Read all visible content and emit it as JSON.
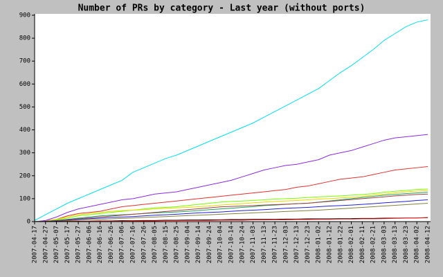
{
  "chart_data": {
    "type": "line",
    "title": "Number of PRs by category - Last year (without ports)",
    "categories": [
      "2007-04-17",
      "2007-04-27",
      "2007-05-07",
      "2007-05-17",
      "2007-05-27",
      "2007-06-06",
      "2007-06-16",
      "2007-06-26",
      "2007-07-06",
      "2007-07-16",
      "2007-07-26",
      "2007-08-05",
      "2007-08-15",
      "2007-08-25",
      "2007-09-04",
      "2007-09-14",
      "2007-09-24",
      "2007-10-04",
      "2007-10-14",
      "2007-10-24",
      "2007-11-03",
      "2007-11-13",
      "2007-11-23",
      "2007-12-03",
      "2007-12-13",
      "2007-12-23",
      "2008-01-02",
      "2008-01-12",
      "2008-01-22",
      "2008-02-01",
      "2008-02-11",
      "2008-02-21",
      "2008-03-03",
      "2008-03-13",
      "2008-03-23",
      "2008-04-02",
      "2008-04-12"
    ],
    "series": [
      {
        "color": "#00e0f0",
        "values": [
          5,
          30,
          55,
          80,
          100,
          120,
          140,
          160,
          180,
          215,
          235,
          255,
          275,
          290,
          310,
          330,
          350,
          370,
          390,
          410,
          430,
          455,
          480,
          505,
          530,
          555,
          580,
          615,
          650,
          680,
          715,
          750,
          790,
          820,
          850,
          870,
          880
        ]
      },
      {
        "color": "#8a2be2",
        "values": [
          0,
          5,
          20,
          40,
          55,
          65,
          75,
          85,
          95,
          100,
          110,
          120,
          125,
          130,
          140,
          150,
          160,
          170,
          180,
          195,
          210,
          225,
          235,
          245,
          250,
          260,
          270,
          290,
          300,
          310,
          325,
          340,
          355,
          365,
          370,
          375,
          380
        ]
      },
      {
        "color": "#e03030",
        "values": [
          0,
          3,
          10,
          25,
          35,
          40,
          45,
          55,
          65,
          70,
          75,
          80,
          85,
          90,
          95,
          100,
          105,
          110,
          115,
          120,
          125,
          130,
          135,
          140,
          150,
          155,
          165,
          175,
          185,
          190,
          195,
          205,
          215,
          225,
          230,
          235,
          240
        ]
      },
      {
        "color": "#7cfc00",
        "values": [
          0,
          2,
          8,
          15,
          25,
          30,
          35,
          40,
          45,
          50,
          55,
          60,
          62,
          65,
          70,
          75,
          80,
          85,
          88,
          90,
          92,
          95,
          98,
          100,
          102,
          105,
          108,
          110,
          112,
          115,
          118,
          122,
          128,
          132,
          136,
          140,
          142
        ]
      },
      {
        "color": "#e8d800",
        "values": [
          0,
          2,
          10,
          20,
          30,
          35,
          40,
          45,
          48,
          50,
          52,
          55,
          58,
          60,
          62,
          65,
          68,
          72,
          75,
          78,
          82,
          85,
          88,
          90,
          92,
          95,
          98,
          100,
          103,
          106,
          110,
          115,
          120,
          125,
          130,
          133,
          135
        ]
      },
      {
        "color": "#20a060",
        "values": [
          0,
          1,
          5,
          10,
          15,
          20,
          25,
          28,
          30,
          32,
          35,
          38,
          40,
          42,
          45,
          48,
          52,
          55,
          58,
          62,
          65,
          70,
          72,
          75,
          78,
          80,
          85,
          90,
          95,
          100,
          105,
          110,
          115,
          118,
          122,
          125,
          128
        ]
      },
      {
        "color": "#a04040",
        "values": [
          0,
          1,
          4,
          8,
          12,
          16,
          20,
          24,
          28,
          32,
          36,
          40,
          44,
          48,
          52,
          56,
          60,
          64,
          66,
          68,
          70,
          72,
          74,
          76,
          78,
          80,
          84,
          88,
          92,
          96,
          100,
          104,
          108,
          112,
          115,
          118,
          120
        ]
      },
      {
        "color": "#2020d0",
        "values": [
          0,
          1,
          3,
          6,
          10,
          13,
          15,
          18,
          20,
          22,
          25,
          28,
          30,
          32,
          35,
          38,
          40,
          42,
          45,
          48,
          50,
          52,
          55,
          58,
          60,
          62,
          65,
          68,
          70,
          72,
          75,
          78,
          82,
          85,
          88,
          92,
          95
        ]
      },
      {
        "color": "#808040",
        "values": [
          0,
          0,
          2,
          4,
          6,
          8,
          10,
          12,
          14,
          16,
          18,
          20,
          22,
          24,
          26,
          28,
          30,
          32,
          34,
          36,
          38,
          40,
          42,
          44,
          46,
          48,
          50,
          53,
          56,
          59,
          62,
          65,
          68,
          71,
          74,
          77,
          80
        ]
      },
      {
        "color": "#000000",
        "values": [
          0,
          0,
          1,
          1,
          2,
          2,
          3,
          3,
          4,
          4,
          5,
          5,
          6,
          6,
          7,
          7,
          8,
          8,
          9,
          9,
          10,
          10,
          10,
          11,
          11,
          12,
          12,
          12,
          13,
          13,
          14,
          14,
          15,
          15,
          16,
          16,
          17
        ]
      },
      {
        "color": "#ff2020",
        "values": [
          0,
          0,
          0,
          1,
          1,
          1,
          2,
          2,
          2,
          3,
          3,
          3,
          4,
          4,
          5,
          5,
          5,
          6,
          6,
          6,
          7,
          7,
          8,
          8,
          9,
          9,
          10,
          10,
          11,
          11,
          12,
          12,
          13,
          14,
          15,
          16,
          18
        ]
      }
    ],
    "ylim": [
      0,
      900
    ],
    "yticks": [
      0,
      100,
      200,
      300,
      400,
      500,
      600,
      700,
      800,
      900
    ]
  }
}
